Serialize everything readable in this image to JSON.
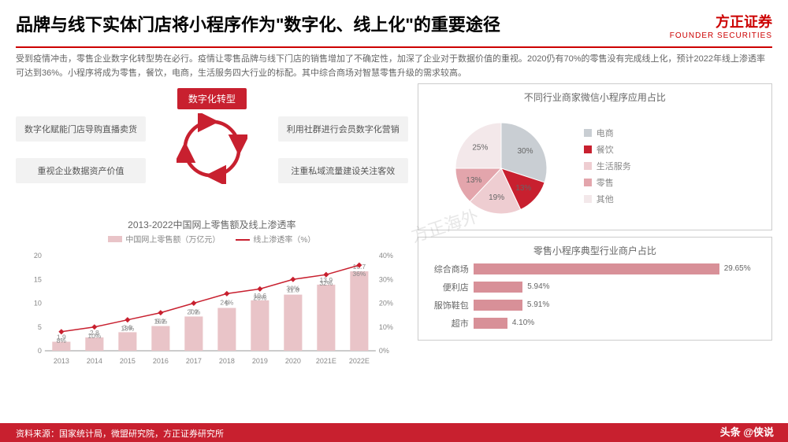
{
  "header": {
    "title": "品牌与线下实体门店将小程序作为\"数字化、线上化\"的重要途径",
    "logo_main": "方正证券",
    "logo_sub": "FOUNDER SECURITIES"
  },
  "desc": "受到疫情冲击，零售企业数字化转型势在必行。疫情让零售品牌与线下门店的销售增加了不确定性，加深了企业对于数据价值的重视。2020仍有70%的零售没有完成线上化，预计2022年线上渗透率可达到36%。小程序将成为零售，餐饮，电商，生活服务四大行业的标配。其中综合商场对智慧零售升级的需求较高。",
  "cycle": {
    "center": "数字化转型",
    "arrow_color": "#c8202f",
    "boxes": {
      "tl": "数字化赋能门店导购直播卖货",
      "tr": "利用社群进行会员数字化营销",
      "bl": "重视企业数据资产价值",
      "br": "注重私域流量建设关注客效"
    }
  },
  "combo_chart": {
    "title": "2013-2022中国网上零售额及线上渗透率",
    "legend_bar": "中国网上零售额（万亿元）",
    "legend_line": "线上渗透率（%）",
    "bar_color": "#e9c4c8",
    "line_color": "#c8202f",
    "axis_color": "#999",
    "text_color": "#888",
    "y_left": {
      "max": 20,
      "ticks": [
        0,
        5,
        10,
        15,
        20
      ]
    },
    "y_right": {
      "max": 40,
      "ticks": [
        0,
        10,
        20,
        30,
        40
      ],
      "suffix": "%"
    },
    "categories": [
      "2013",
      "2014",
      "2015",
      "2016",
      "2017",
      "2018",
      "2019",
      "2020",
      "2021E",
      "2022E"
    ],
    "bars": [
      1.9,
      2.8,
      3.9,
      5.2,
      7.2,
      9.0,
      10.6,
      11.8,
      13.9,
      16.7
    ],
    "line": [
      8,
      10,
      13,
      16,
      20,
      24,
      26,
      30,
      32,
      36
    ]
  },
  "pie_chart": {
    "title": "不同行业商家微信小程序应用占比",
    "colors": [
      "#c9ced3",
      "#c8202f",
      "#eecdd1",
      "#e3a5ac",
      "#f3e8ea"
    ],
    "labels": [
      "电商",
      "餐饮",
      "生活服务",
      "零售",
      "其他"
    ],
    "values": [
      30,
      13,
      19,
      13,
      25
    ],
    "label_color": "#888"
  },
  "hbar_chart": {
    "title": "零售小程序典型行业商户占比",
    "bar_color": "#d89098",
    "max": 35,
    "rows": [
      {
        "label": "综合商场",
        "value": 29.65,
        "text": "29.65%"
      },
      {
        "label": "便利店",
        "value": 5.94,
        "text": "5.94%"
      },
      {
        "label": "服饰鞋包",
        "value": 5.91,
        "text": "5.91%"
      },
      {
        "label": "超市",
        "value": 4.1,
        "text": "4.10%"
      }
    ]
  },
  "footer": "资料来源：国家统计局，微盟研究院，方正证券研究所",
  "watermark": "头条 @侠说",
  "wm_center": "方正海外"
}
